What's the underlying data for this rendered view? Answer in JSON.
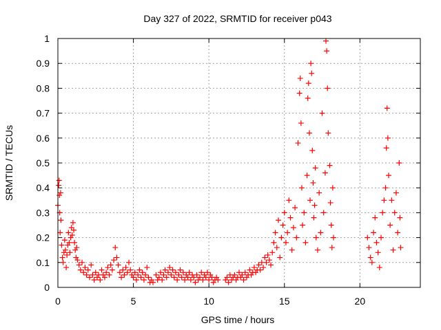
{
  "chart_data": {
    "type": "scatter",
    "title": "Day 327 of 2022, SRMTID for receiver p043",
    "xlabel": "GPS time / hours",
    "ylabel": "SRMTID / TECUs",
    "xlim": [
      0,
      24
    ],
    "ylim": [
      0,
      1
    ],
    "xticks": [
      0,
      5,
      10,
      15,
      20
    ],
    "xtick_labels": [
      "0",
      "5",
      "10",
      "15",
      "20"
    ],
    "yticks": [
      0,
      0.1,
      0.2,
      0.3,
      0.4,
      0.5,
      0.6,
      0.7,
      0.8,
      0.9,
      1
    ],
    "ytick_labels": [
      "0",
      "0.1",
      "0.2",
      "0.3",
      "0.4",
      "0.5",
      "0.6",
      "0.7",
      "0.8",
      "0.9",
      "1"
    ],
    "grid": true,
    "marker": "+",
    "color": "#ff0000",
    "series": [
      {
        "name": "SRMTID p043",
        "points": [
          [
            0.0,
            0.33
          ],
          [
            0.05,
            0.41
          ],
          [
            0.08,
            0.43
          ],
          [
            0.1,
            0.37
          ],
          [
            0.12,
            0.3
          ],
          [
            0.15,
            0.22
          ],
          [
            0.18,
            0.38
          ],
          [
            0.2,
            0.27
          ],
          [
            0.25,
            0.17
          ],
          [
            0.3,
            0.12
          ],
          [
            0.35,
            0.1
          ],
          [
            0.4,
            0.14
          ],
          [
            0.45,
            0.19
          ],
          [
            0.5,
            0.15
          ],
          [
            0.55,
            0.08
          ],
          [
            0.6,
            0.13
          ],
          [
            0.65,
            0.17
          ],
          [
            0.7,
            0.22
          ],
          [
            0.75,
            0.18
          ],
          [
            0.8,
            0.14
          ],
          [
            0.85,
            0.2
          ],
          [
            0.9,
            0.24
          ],
          [
            0.95,
            0.21
          ],
          [
            1.0,
            0.26
          ],
          [
            1.05,
            0.23
          ],
          [
            1.1,
            0.18
          ],
          [
            1.15,
            0.15
          ],
          [
            1.2,
            0.12
          ],
          [
            1.25,
            0.16
          ],
          [
            1.3,
            0.11
          ],
          [
            1.4,
            0.09
          ],
          [
            1.5,
            0.07
          ],
          [
            1.6,
            0.1
          ],
          [
            1.7,
            0.06
          ],
          [
            1.8,
            0.08
          ],
          [
            1.9,
            0.05
          ],
          [
            2.0,
            0.07
          ],
          [
            2.1,
            0.04
          ],
          [
            2.2,
            0.09
          ],
          [
            2.3,
            0.05
          ],
          [
            2.4,
            0.03
          ],
          [
            2.5,
            0.06
          ],
          [
            2.6,
            0.04
          ],
          [
            2.7,
            0.05
          ],
          [
            2.8,
            0.03
          ],
          [
            2.9,
            0.07
          ],
          [
            3.0,
            0.05
          ],
          [
            3.1,
            0.04
          ],
          [
            3.2,
            0.06
          ],
          [
            3.3,
            0.08
          ],
          [
            3.4,
            0.05
          ],
          [
            3.5,
            0.09
          ],
          [
            3.6,
            0.07
          ],
          [
            3.7,
            0.11
          ],
          [
            3.8,
            0.16
          ],
          [
            3.9,
            0.12
          ],
          [
            4.0,
            0.09
          ],
          [
            4.1,
            0.06
          ],
          [
            4.2,
            0.04
          ],
          [
            4.3,
            0.07
          ],
          [
            4.4,
            0.05
          ],
          [
            4.5,
            0.08
          ],
          [
            4.6,
            0.06
          ],
          [
            4.7,
            0.1
          ],
          [
            4.8,
            0.07
          ],
          [
            4.9,
            0.05
          ],
          [
            5.0,
            0.04
          ],
          [
            5.1,
            0.06
          ],
          [
            5.2,
            0.03
          ],
          [
            5.3,
            0.05
          ],
          [
            5.4,
            0.07
          ],
          [
            5.5,
            0.04
          ],
          [
            5.6,
            0.06
          ],
          [
            5.7,
            0.03
          ],
          [
            5.8,
            0.05
          ],
          [
            5.9,
            0.08
          ],
          [
            6.0,
            0.04
          ],
          [
            6.1,
            0.02
          ],
          [
            6.2,
            0.03
          ],
          [
            6.3,
            0.02
          ],
          [
            6.5,
            0.05
          ],
          [
            6.6,
            0.03
          ],
          [
            6.7,
            0.04
          ],
          [
            6.8,
            0.06
          ],
          [
            6.9,
            0.03
          ],
          [
            7.0,
            0.05
          ],
          [
            7.1,
            0.07
          ],
          [
            7.2,
            0.04
          ],
          [
            7.3,
            0.06
          ],
          [
            7.4,
            0.08
          ],
          [
            7.5,
            0.05
          ],
          [
            7.6,
            0.07
          ],
          [
            7.7,
            0.04
          ],
          [
            7.8,
            0.06
          ],
          [
            7.9,
            0.03
          ],
          [
            8.0,
            0.05
          ],
          [
            8.1,
            0.07
          ],
          [
            8.2,
            0.04
          ],
          [
            8.3,
            0.06
          ],
          [
            8.4,
            0.03
          ],
          [
            8.5,
            0.05
          ],
          [
            8.6,
            0.04
          ],
          [
            8.7,
            0.06
          ],
          [
            8.8,
            0.03
          ],
          [
            8.9,
            0.05
          ],
          [
            9.0,
            0.04
          ],
          [
            9.1,
            0.02
          ],
          [
            9.2,
            0.05
          ],
          [
            9.3,
            0.03
          ],
          [
            9.4,
            0.04
          ],
          [
            9.5,
            0.06
          ],
          [
            9.6,
            0.03
          ],
          [
            9.7,
            0.05
          ],
          [
            9.8,
            0.04
          ],
          [
            9.9,
            0.06
          ],
          [
            10.0,
            0.03
          ],
          [
            10.1,
            0.05
          ],
          [
            10.2,
            0.04
          ],
          [
            10.3,
            0.02
          ],
          [
            10.4,
            0.03
          ],
          [
            10.5,
            0.04
          ],
          [
            10.6,
            0.03
          ],
          [
            11.1,
            0.03
          ],
          [
            11.2,
            0.04
          ],
          [
            11.3,
            0.02
          ],
          [
            11.4,
            0.05
          ],
          [
            11.5,
            0.03
          ],
          [
            11.6,
            0.04
          ],
          [
            11.7,
            0.05
          ],
          [
            11.8,
            0.03
          ],
          [
            11.9,
            0.04
          ],
          [
            12.0,
            0.06
          ],
          [
            12.1,
            0.04
          ],
          [
            12.2,
            0.05
          ],
          [
            12.3,
            0.03
          ],
          [
            12.4,
            0.06
          ],
          [
            12.5,
            0.04
          ],
          [
            12.6,
            0.05
          ],
          [
            12.7,
            0.07
          ],
          [
            12.8,
            0.05
          ],
          [
            12.9,
            0.06
          ],
          [
            13.0,
            0.08
          ],
          [
            13.1,
            0.06
          ],
          [
            13.2,
            0.07
          ],
          [
            13.3,
            0.09
          ],
          [
            13.4,
            0.07
          ],
          [
            13.5,
            0.1
          ],
          [
            13.6,
            0.08
          ],
          [
            13.7,
            0.12
          ],
          [
            13.8,
            0.1
          ],
          [
            13.9,
            0.13
          ],
          [
            14.0,
            0.11
          ],
          [
            14.1,
            0.09
          ],
          [
            14.2,
            0.14
          ],
          [
            14.3,
            0.18
          ],
          [
            14.4,
            0.22
          ],
          [
            14.5,
            0.16
          ],
          [
            14.6,
            0.27
          ],
          [
            14.7,
            0.12
          ],
          [
            14.8,
            0.2
          ],
          [
            14.9,
            0.25
          ],
          [
            15.0,
            0.3
          ],
          [
            15.1,
            0.18
          ],
          [
            15.2,
            0.22
          ],
          [
            15.3,
            0.35
          ],
          [
            15.4,
            0.28
          ],
          [
            15.5,
            0.15
          ],
          [
            15.6,
            0.24
          ],
          [
            15.7,
            0.32
          ],
          [
            15.8,
            0.2
          ],
          [
            15.9,
            0.58
          ],
          [
            16.0,
            0.78
          ],
          [
            16.05,
            0.84
          ],
          [
            16.1,
            0.66
          ],
          [
            16.15,
            0.4
          ],
          [
            16.2,
            0.25
          ],
          [
            16.3,
            0.3
          ],
          [
            16.4,
            0.18
          ],
          [
            16.5,
            0.45
          ],
          [
            16.55,
            0.76
          ],
          [
            16.6,
            0.82
          ],
          [
            16.65,
            0.62
          ],
          [
            16.7,
            0.35
          ],
          [
            16.75,
            0.9
          ],
          [
            16.8,
            0.86
          ],
          [
            16.85,
            0.55
          ],
          [
            16.9,
            0.42
          ],
          [
            16.95,
            0.28
          ],
          [
            17.0,
            0.33
          ],
          [
            17.05,
            0.48
          ],
          [
            17.1,
            0.2
          ],
          [
            17.2,
            0.15
          ],
          [
            17.3,
            0.38
          ],
          [
            17.4,
            0.22
          ],
          [
            17.5,
            0.7
          ],
          [
            17.6,
            0.3
          ],
          [
            17.7,
            0.46
          ],
          [
            17.75,
            0.99
          ],
          [
            17.8,
            0.95
          ],
          [
            17.85,
            0.8
          ],
          [
            17.9,
            0.62
          ],
          [
            18.0,
            0.49
          ],
          [
            18.05,
            0.34
          ],
          [
            18.1,
            0.25
          ],
          [
            18.15,
            0.16
          ],
          [
            18.2,
            0.4
          ],
          [
            18.25,
            0.2
          ],
          [
            20.5,
            0.2
          ],
          [
            20.6,
            0.16
          ],
          [
            20.7,
            0.12
          ],
          [
            20.8,
            0.1
          ],
          [
            20.9,
            0.22
          ],
          [
            21.0,
            0.28
          ],
          [
            21.1,
            0.18
          ],
          [
            21.2,
            0.14
          ],
          [
            21.3,
            0.08
          ],
          [
            21.4,
            0.2
          ],
          [
            21.5,
            0.3
          ],
          [
            21.6,
            0.35
          ],
          [
            21.7,
            0.4
          ],
          [
            21.75,
            0.56
          ],
          [
            21.8,
            0.72
          ],
          [
            21.85,
            0.6
          ],
          [
            21.9,
            0.45
          ],
          [
            22.0,
            0.25
          ],
          [
            22.1,
            0.35
          ],
          [
            22.2,
            0.15
          ],
          [
            22.3,
            0.3
          ],
          [
            22.4,
            0.38
          ],
          [
            22.5,
            0.22
          ],
          [
            22.6,
            0.5
          ],
          [
            22.65,
            0.28
          ],
          [
            22.7,
            0.16
          ]
        ]
      }
    ]
  }
}
